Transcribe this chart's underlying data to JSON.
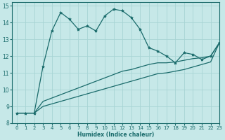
{
  "xlabel": "Humidex (Indice chaleur)",
  "bg_color": "#c6e8e8",
  "grid_color": "#a8d4d4",
  "line_color": "#1a6b6b",
  "xlim": [
    -0.5,
    23
  ],
  "ylim": [
    8,
    15.2
  ],
  "xticks": [
    0,
    1,
    2,
    3,
    4,
    5,
    6,
    7,
    8,
    9,
    10,
    11,
    12,
    13,
    14,
    15,
    16,
    17,
    18,
    19,
    20,
    21,
    22,
    23
  ],
  "yticks": [
    8,
    9,
    10,
    11,
    12,
    13,
    14,
    15
  ],
  "series1_x": [
    0,
    1,
    2,
    3,
    4,
    5,
    6,
    7,
    8,
    9,
    10,
    11,
    12,
    13,
    14,
    15,
    16,
    17,
    18,
    19,
    20,
    21,
    22,
    23
  ],
  "series1_y": [
    8.6,
    8.6,
    8.6,
    11.4,
    13.5,
    14.6,
    14.2,
    13.6,
    13.8,
    13.5,
    14.4,
    14.8,
    14.7,
    14.3,
    13.6,
    12.5,
    12.3,
    12.0,
    11.6,
    12.2,
    12.1,
    11.8,
    12.0,
    12.8
  ],
  "series2_x": [
    0,
    1,
    2,
    3,
    4,
    5,
    6,
    7,
    8,
    9,
    10,
    11,
    12,
    13,
    14,
    15,
    16,
    17,
    18,
    19,
    20,
    21,
    22,
    23
  ],
  "series2_y": [
    8.6,
    8.6,
    8.6,
    9.3,
    9.5,
    9.7,
    9.9,
    10.1,
    10.3,
    10.5,
    10.7,
    10.9,
    11.1,
    11.2,
    11.35,
    11.5,
    11.6,
    11.6,
    11.65,
    11.75,
    11.85,
    11.9,
    12.0,
    12.8
  ],
  "series3_x": [
    0,
    1,
    2,
    3,
    4,
    5,
    6,
    7,
    8,
    9,
    10,
    11,
    12,
    13,
    14,
    15,
    16,
    17,
    18,
    19,
    20,
    21,
    22,
    23
  ],
  "series3_y": [
    8.6,
    8.6,
    8.6,
    9.0,
    9.15,
    9.3,
    9.45,
    9.6,
    9.75,
    9.9,
    10.05,
    10.2,
    10.35,
    10.5,
    10.65,
    10.8,
    10.95,
    11.0,
    11.1,
    11.2,
    11.35,
    11.5,
    11.65,
    12.8
  ]
}
